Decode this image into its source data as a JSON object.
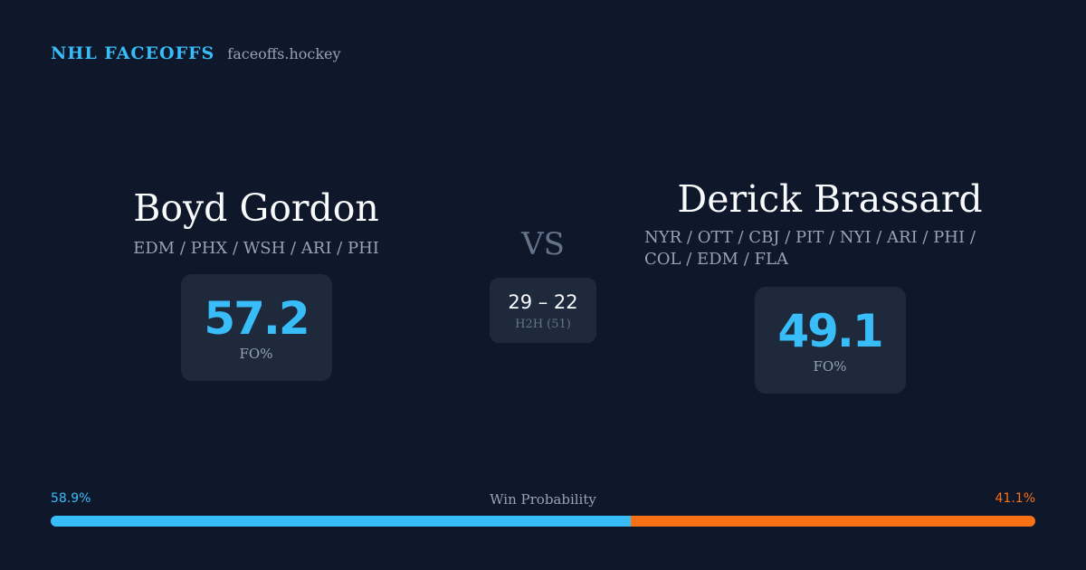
{
  "brand": {
    "name": "NHL FACEOFFS",
    "site": "faceoffs.hockey"
  },
  "player_left": {
    "name": "Boyd Gordon",
    "teams": "EDM / PHX / WSH / ARI / PHI",
    "fo_pct": "57.2",
    "fo_label": "FO%"
  },
  "player_right": {
    "name": "Derick Brassard",
    "teams": "NYR / OTT / CBJ / PIT / NYI / ARI / PHI / COL / EDM / FLA",
    "fo_pct": "49.1",
    "fo_label": "FO%"
  },
  "matchup": {
    "vs": "VS",
    "h2h_score": "29 – 22",
    "h2h_label": "H2H (51)"
  },
  "win_probability": {
    "title": "Win Probability",
    "left_label": "58.9%",
    "right_label": "41.1%",
    "left_value": 58.9,
    "right_value": 41.1,
    "left_color": "#38bdf8",
    "right_color": "#f97316"
  },
  "colors": {
    "background": "#0f172a",
    "card": "#1e293b",
    "accent": "#38bdf8",
    "muted": "#94a3b8"
  }
}
